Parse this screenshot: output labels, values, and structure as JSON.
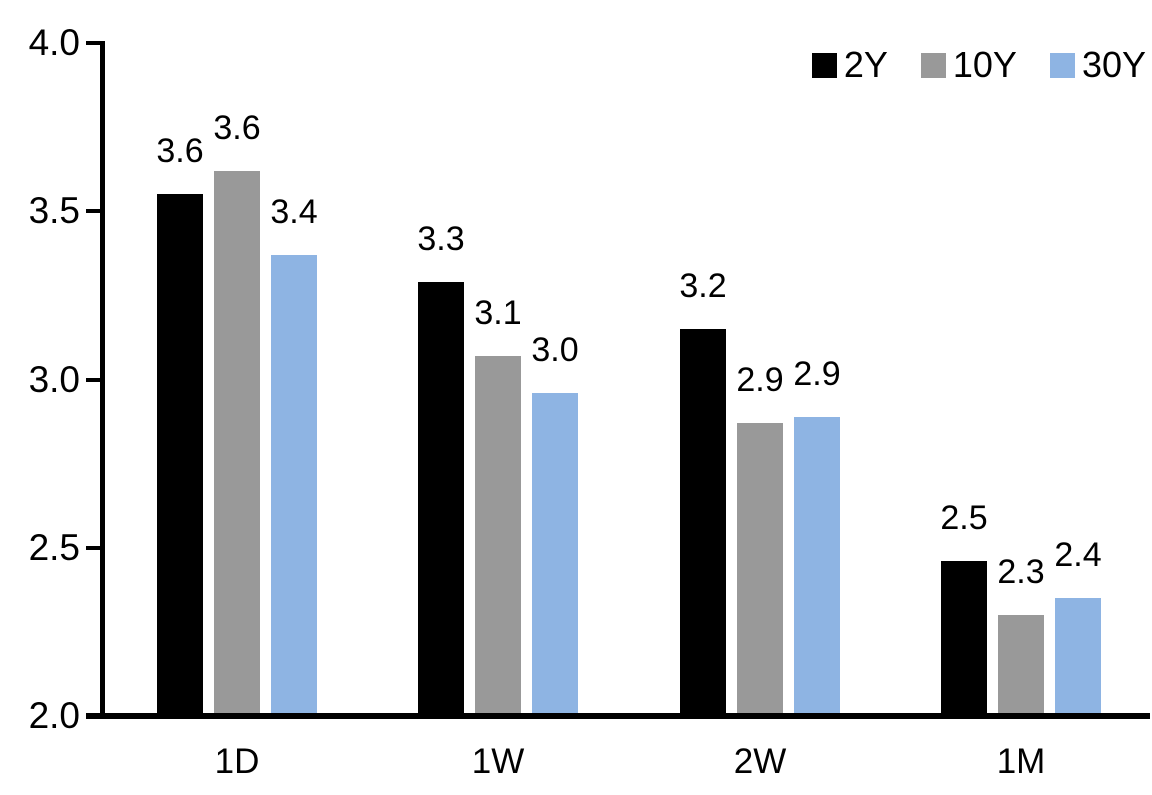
{
  "chart_data": {
    "type": "bar",
    "title": "",
    "xlabel": "",
    "ylabel": "",
    "categories": [
      "1D",
      "1W",
      "2W",
      "1M"
    ],
    "series": [
      {
        "name": "2Y",
        "color": "#000000",
        "values": [
          3.55,
          3.29,
          3.15,
          2.46
        ],
        "labels": [
          "3.6",
          "3.3",
          "3.2",
          "2.5"
        ]
      },
      {
        "name": "10Y",
        "color": "#999999",
        "values": [
          3.62,
          3.07,
          2.87,
          2.3
        ],
        "labels": [
          "3.6",
          "3.1",
          "2.9",
          "2.3"
        ]
      },
      {
        "name": "30Y",
        "color": "#8EB4E3",
        "values": [
          3.37,
          2.96,
          2.89,
          2.35
        ],
        "labels": [
          "3.4",
          "3.0",
          "2.9",
          "2.4"
        ]
      }
    ],
    "ylim": [
      2.0,
      4.0
    ],
    "yticks": [
      4.0,
      3.5,
      3.0,
      2.5,
      2.0
    ],
    "ytick_labels": [
      "4.0",
      "3.5",
      "3.0",
      "2.5",
      "2.0"
    ],
    "grid": false,
    "legend_position": "top-right",
    "axis_color": "#000000",
    "text_color": "#000000",
    "background": "#FFFFFF"
  }
}
